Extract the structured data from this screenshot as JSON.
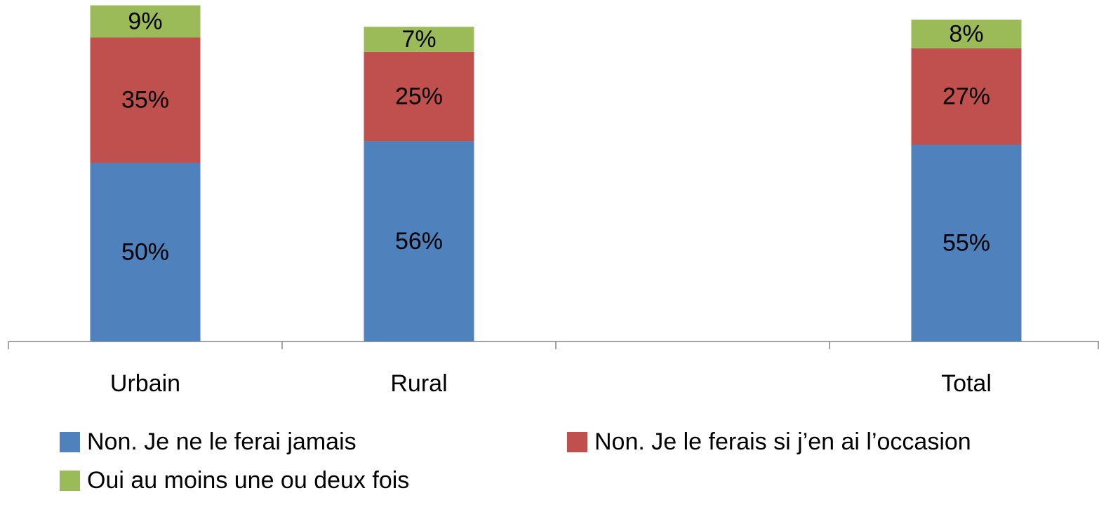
{
  "chart_data": {
    "type": "stacked_bar",
    "categories": [
      "Urbain",
      "Rural",
      null,
      "Total"
    ],
    "series": [
      {
        "name": "Non. Je ne le ferai jamais",
        "color": "#4f81bd",
        "values": [
          50,
          56,
          null,
          55
        ],
        "value_labels": [
          "50%",
          "56%",
          null,
          "55%"
        ]
      },
      {
        "name": "Non. Je le ferais si j’en ai l’occasion",
        "color": "#c0504d",
        "values": [
          35,
          25,
          null,
          27
        ],
        "value_labels": [
          "35%",
          "25%",
          null,
          "27%"
        ]
      },
      {
        "name": "Oui au moins une ou deux fois",
        "color": "#9bbb59",
        "values": [
          9,
          7,
          null,
          8
        ],
        "value_labels": [
          "9%",
          "7%",
          null,
          "8%"
        ]
      }
    ],
    "legend": "bottom"
  }
}
